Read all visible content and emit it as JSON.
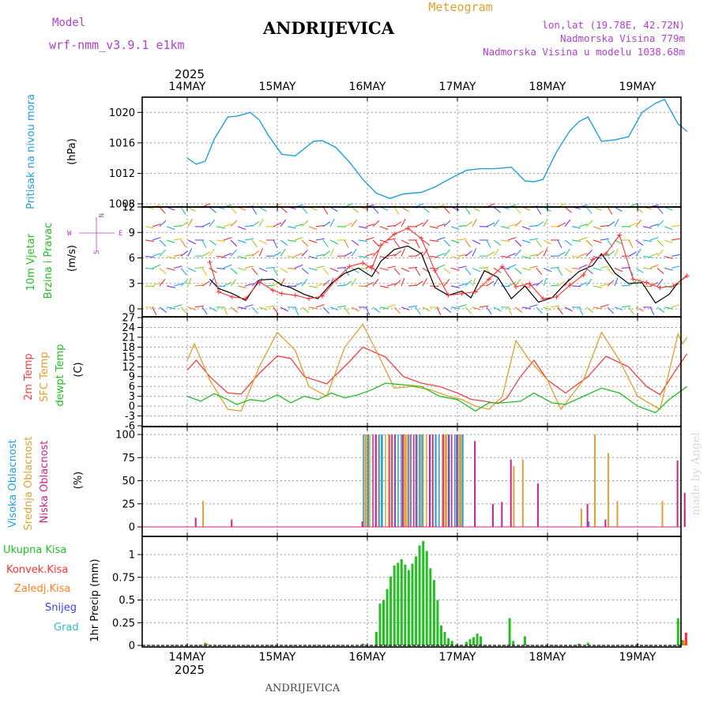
{
  "header": {
    "title": "ANDRIJEVICA",
    "meteogram_label": "Meteogram",
    "model_label": "Model",
    "model_name": "wrf-nmm_v3.9.1 e1km",
    "coords": "lon,lat (19.78E, 42.72N)",
    "elevation": "Nadmorska Visina 779m",
    "model_elevation": "Nadmorska Visina u modelu 1038.68m",
    "footer_title": "ANDRIJEVICA",
    "credit": "made by Angel",
    "year": "2025"
  },
  "colors": {
    "pressure": "#1ea0e0",
    "wind_speed": "#000000",
    "gust": "#ff3030",
    "temp2m": "#f04040",
    "sfc_temp": "#e0a030",
    "dewpoint": "#20c020",
    "cloud_high": "#1ea0e0",
    "cloud_mid": "#e0a030",
    "cloud_low": "#d0208c",
    "total_precip": "#22c022",
    "convective": "#ff3030",
    "frozen": "#ff8020",
    "snow": "#4040e0",
    "graupel": "#30c0c0",
    "purple_text": "#b040d0",
    "orange_text": "#e0a030"
  },
  "days": [
    "14MAY",
    "15MAY",
    "16MAY",
    "17MAY",
    "18MAY",
    "19MAY"
  ],
  "chart_data": [
    {
      "type": "line",
      "panel": "pressure",
      "ylabel": "Pritisak na nivou mora",
      "unit": "(hPa)",
      "ylim": [
        1008,
        1022
      ],
      "yticks": [
        "1008",
        "1012",
        "1016",
        "1020"
      ],
      "series": [
        {
          "x": [
            0,
            0.1,
            0.2,
            0.3,
            0.45,
            0.55,
            0.7,
            0.8,
            0.9,
            1.05,
            1.2,
            1.4,
            1.5,
            1.65,
            1.8,
            1.95,
            2.1,
            2.25,
            2.4,
            2.6,
            2.75,
            2.95,
            3.1,
            3.25,
            3.4,
            3.6,
            3.75,
            3.85,
            3.95,
            4.1,
            4.25,
            4.35,
            4.45,
            4.6,
            4.75,
            4.9,
            5.05,
            5.2,
            5.3,
            5.45,
            5.55
          ],
          "values": [
            1014.0,
            1013.2,
            1013.6,
            1016.5,
            1019.4,
            1019.5,
            1020.0,
            1019.0,
            1017.0,
            1014.5,
            1014.3,
            1016.2,
            1016.3,
            1015.4,
            1013.5,
            1011.2,
            1009.4,
            1008.7,
            1009.3,
            1009.5,
            1010.2,
            1011.5,
            1012.4,
            1012.6,
            1012.6,
            1012.8,
            1011.0,
            1010.9,
            1011.2,
            1014.8,
            1017.6,
            1018.8,
            1019.4,
            1016.2,
            1016.4,
            1016.8,
            1020.0,
            1021.2,
            1021.7,
            1018.5,
            1017.5
          ]
        }
      ]
    },
    {
      "type": "line",
      "panel": "wind",
      "ylabel": "10m Vjetar Brzina i Pravac",
      "unit": "(m/s)",
      "compass": [
        "W",
        "E",
        "N",
        "S"
      ],
      "ylim": [
        0,
        12
      ],
      "yticks": [
        "0",
        "3",
        "6",
        "9",
        "12"
      ],
      "series": [
        {
          "name": "wind speed",
          "x": [
            0.25,
            0.35,
            0.5,
            0.65,
            0.8,
            0.95,
            1.05,
            1.15,
            1.3,
            1.45,
            1.6,
            1.75,
            1.9,
            2.05,
            2.15,
            2.3,
            2.45,
            2.6,
            2.75,
            2.9,
            3.05,
            3.15,
            3.3,
            3.45,
            3.6,
            3.75,
            3.9,
            4.05,
            4.2,
            4.35,
            4.5,
            4.6,
            4.75,
            4.9,
            5.05,
            5.2,
            5.35,
            5.45,
            5.55
          ],
          "values": [
            3.5,
            2.4,
            1.8,
            1.0,
            3.4,
            3.5,
            2.8,
            2.5,
            1.7,
            1.2,
            3.0,
            4.2,
            4.8,
            3.8,
            5.6,
            7.0,
            7.4,
            6.5,
            2.5,
            1.6,
            2.1,
            1.3,
            4.5,
            3.7,
            1.2,
            2.7,
            0.8,
            1.3,
            3.0,
            4.4,
            5.1,
            6.5,
            4.2,
            3.0,
            3.1,
            0.7,
            1.7,
            3.1,
            3.9
          ]
        },
        {
          "name": "gust",
          "x": [
            0.25,
            0.35,
            0.5,
            0.65,
            0.8,
            0.95,
            1.05,
            1.2,
            1.35,
            1.5,
            1.65,
            1.8,
            1.95,
            2.05,
            2.15,
            2.3,
            2.45,
            2.6,
            2.75,
            2.9,
            3.05,
            3.2,
            3.35,
            3.5,
            3.65,
            3.8,
            3.95,
            4.1,
            4.25,
            4.4,
            4.5,
            4.65,
            4.8,
            4.95,
            5.1,
            5.25,
            5.4,
            5.55
          ],
          "values": [
            5.5,
            2.0,
            1.4,
            1.2,
            3.2,
            2.2,
            1.8,
            1.6,
            1.2,
            1.5,
            3.4,
            5.0,
            5.4,
            4.8,
            7.5,
            8.8,
            9.5,
            8.3,
            4.5,
            1.6,
            1.8,
            2.0,
            3.5,
            5.0,
            2.6,
            3.0,
            1.2,
            1.4,
            2.8,
            4.0,
            5.8,
            6.5,
            8.7,
            3.5,
            3.1,
            2.5,
            2.7,
            3.9
          ]
        }
      ]
    },
    {
      "type": "line",
      "panel": "temperature",
      "ylabel": "2m Temp / SFC Temp / dewpt Temp",
      "unit": "(C)",
      "ylim": [
        -6,
        27
      ],
      "yticks": [
        "-6",
        "-3",
        "0",
        "3",
        "6",
        "9",
        "12",
        "15",
        "18",
        "21",
        "24",
        "27"
      ],
      "series": [
        {
          "name": "2m Temp",
          "x": [
            0,
            0.1,
            0.25,
            0.45,
            0.6,
            0.8,
            1.0,
            1.15,
            1.3,
            1.55,
            1.8,
            1.95,
            2.2,
            2.4,
            2.6,
            2.8,
            3.0,
            3.15,
            3.3,
            3.45,
            3.55,
            3.7,
            3.85,
            4.0,
            4.2,
            4.45,
            4.65,
            4.9,
            5.1,
            5.25,
            5.4,
            5.55
          ],
          "values": [
            11,
            14,
            9,
            4,
            3.7,
            10,
            15.3,
            14.5,
            9,
            6.8,
            13.5,
            18,
            15,
            9,
            7,
            6,
            4,
            2.1,
            1.5,
            0.8,
            2.5,
            9,
            14,
            8,
            4,
            9,
            15.2,
            12,
            6,
            3.5,
            10,
            16
          ]
        },
        {
          "name": "SFC Temp",
          "x": [
            0,
            0.08,
            0.25,
            0.45,
            0.6,
            0.8,
            1.0,
            1.2,
            1.35,
            1.55,
            1.75,
            1.95,
            2.15,
            2.3,
            2.5,
            2.7,
            2.9,
            3.05,
            3.2,
            3.35,
            3.5,
            3.65,
            3.8,
            4.0,
            4.15,
            4.4,
            4.6,
            4.8,
            5.0,
            5.25,
            5.45,
            5.5,
            5.55
          ],
          "values": [
            14,
            19,
            8,
            -1,
            -1.5,
            12,
            22.5,
            17,
            6,
            3,
            18,
            25,
            14,
            5.5,
            6,
            5,
            3,
            2,
            0,
            -1,
            3,
            20,
            14,
            8,
            -1,
            8,
            22.5,
            14,
            3,
            -1,
            22,
            19,
            21
          ]
        },
        {
          "name": "dewpt Temp",
          "x": [
            0,
            0.15,
            0.3,
            0.45,
            0.55,
            0.7,
            0.85,
            1.0,
            1.15,
            1.3,
            1.45,
            1.6,
            1.75,
            1.9,
            2.05,
            2.2,
            2.4,
            2.6,
            2.8,
            3.0,
            3.2,
            3.35,
            3.5,
            3.7,
            3.85,
            4.05,
            4.2,
            4.4,
            4.6,
            4.8,
            5.0,
            5.2,
            5.35,
            5.55
          ],
          "values": [
            3,
            1.5,
            3.8,
            2,
            0.5,
            2,
            1.5,
            3.5,
            1,
            3,
            2,
            4,
            2.5,
            3.5,
            5,
            7,
            6.5,
            6,
            3,
            2,
            -1.5,
            1,
            1,
            1.5,
            4,
            1,
            0.5,
            3,
            5.5,
            4,
            0,
            -2,
            2,
            6
          ]
        }
      ]
    },
    {
      "type": "bar",
      "panel": "clouds",
      "ylabel": "Visoka Oblacnost / Srednja Oblacnost / Niska Oblacnost",
      "unit": "(%)",
      "ylim": [
        0,
        100
      ],
      "yticks": [
        "0",
        "25",
        "50",
        "75",
        "100"
      ],
      "series": [
        {
          "name": "Visoka Oblacnost",
          "x": [
            2.0,
            2.15,
            2.3,
            2.45,
            2.6,
            2.75,
            2.9,
            3.05,
            4.45
          ],
          "values": [
            100,
            100,
            100,
            100,
            100,
            100,
            100,
            100,
            6
          ]
        },
        {
          "name": "Srednja Oblacnost",
          "x": [
            0.15,
            1.95,
            2.1,
            2.25,
            2.4,
            2.55,
            2.7,
            2.85,
            3.0,
            3.6,
            3.7,
            4.35,
            4.5,
            4.65,
            4.75,
            5.25,
            5.5
          ],
          "values": [
            28,
            100,
            100,
            100,
            100,
            100,
            100,
            100,
            100,
            66,
            73,
            20,
            100,
            80,
            28,
            28,
            20
          ]
        },
        {
          "name": "Niska Oblacnost",
          "x": [
            0.05,
            0.45,
            1.9,
            2.05,
            2.2,
            2.35,
            2.5,
            2.65,
            2.8,
            2.95,
            3.15,
            3.35,
            3.45,
            3.55,
            3.85,
            4.4,
            4.6,
            5.4,
            5.48
          ],
          "values": [
            10,
            8,
            6,
            100,
            100,
            100,
            100,
            100,
            100,
            100,
            93,
            25,
            27,
            73,
            47,
            25,
            8,
            72,
            37
          ]
        }
      ]
    },
    {
      "type": "bar",
      "panel": "precipitation",
      "ylabel": "1hr Precip (mm)",
      "legend": [
        "Ukupna Kisa",
        "Konvek.Kisa",
        "Zaledj.Kisa",
        "Snijeg",
        "Grad"
      ],
      "ylim": [
        0,
        1.2
      ],
      "yticks": [
        "0",
        "0.25",
        "0.5",
        "0.75",
        "1"
      ],
      "series": [
        {
          "name": "Ukupna Kisa",
          "x": [
            0.2,
            1.95,
            2.1,
            2.14,
            2.18,
            2.22,
            2.26,
            2.3,
            2.34,
            2.38,
            2.42,
            2.46,
            2.5,
            2.54,
            2.58,
            2.62,
            2.66,
            2.7,
            2.74,
            2.78,
            2.82,
            2.86,
            2.9,
            2.94,
            3.1,
            3.14,
            3.18,
            3.22,
            3.26,
            3.58,
            3.62,
            3.75,
            4.35,
            4.45,
            5.0,
            5.45,
            5.5
          ],
          "values": [
            0.03,
            0.02,
            0.15,
            0.46,
            0.5,
            0.62,
            0.76,
            0.88,
            0.91,
            0.95,
            0.89,
            0.83,
            0.9,
            0.98,
            1.1,
            1.15,
            1.04,
            0.85,
            0.72,
            0.5,
            0.22,
            0.15,
            0.08,
            0.05,
            0.04,
            0.07,
            0.09,
            0.13,
            0.1,
            0.3,
            0.05,
            0.1,
            0.02,
            0.03,
            0.02,
            0.3,
            0.06
          ]
        },
        {
          "name": "Konvek.Kisa",
          "x": [
            5.53
          ],
          "values": [
            0.14
          ]
        },
        {
          "name": "Zaledj.Kisa",
          "x": [
            0.2,
            5.5
          ],
          "values": [
            0.02,
            0.05
          ]
        }
      ]
    }
  ]
}
